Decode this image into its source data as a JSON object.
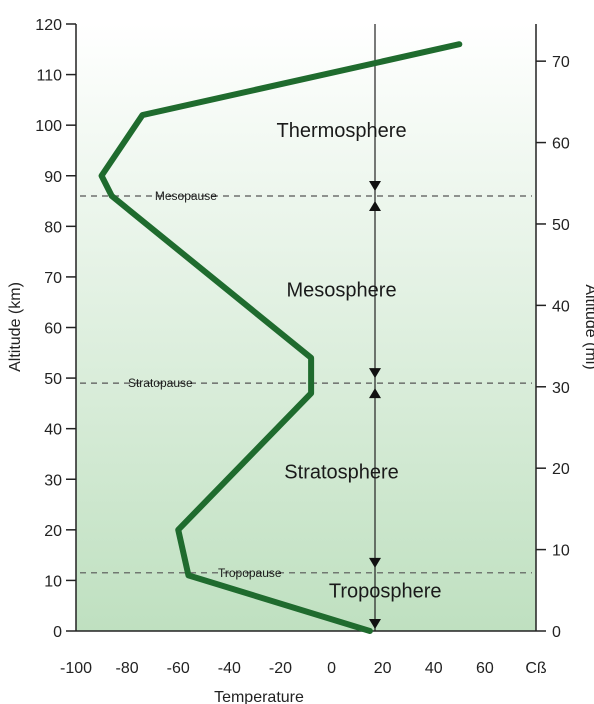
{
  "chart_data": {
    "type": "line",
    "xlabel": "Temperature",
    "ylabel": "Altitude (km)",
    "y2label": "Altitude (mi)",
    "xlim": [
      -100,
      80
    ],
    "ylim": [
      0,
      120
    ],
    "x_ticks": [
      "-100",
      "-80",
      "-60",
      "-40",
      "-20",
      "0",
      "20",
      "40",
      "60",
      "Cß"
    ],
    "x_tick_values": [
      -100,
      -80,
      -60,
      -40,
      -20,
      0,
      20,
      40,
      60,
      80
    ],
    "y_ticks": [
      0,
      10,
      20,
      30,
      40,
      50,
      60,
      70,
      80,
      90,
      100,
      110,
      120
    ],
    "y2_ticks": [
      0,
      10,
      20,
      30,
      40,
      50,
      60,
      70
    ],
    "grid": false,
    "series": [
      {
        "x": [
          15,
          -56,
          -60,
          -8,
          -8,
          -86,
          -90,
          -74,
          50
        ],
        "y": [
          0,
          11,
          20,
          47,
          54,
          86,
          90,
          102,
          116
        ]
      }
    ],
    "reference_lines": [
      {
        "label": "Mesopause",
        "y": 86
      },
      {
        "label": "Stratopause",
        "y": 49
      },
      {
        "label": "Tropopause",
        "y": 11.5
      }
    ],
    "layers": [
      {
        "label": "Thermosphere",
        "y": 99
      },
      {
        "label": "Mesosphere",
        "y": 67.5
      },
      {
        "label": "Stratosphere",
        "y": 31.5
      },
      {
        "label": "Troposphere",
        "y": 8
      }
    ],
    "divider_x": 17,
    "colors": {
      "line": "#1f6b2e",
      "bg_top": "#ffffff",
      "bg_bottom": "#bfe0c0",
      "axis": "#222222"
    }
  }
}
